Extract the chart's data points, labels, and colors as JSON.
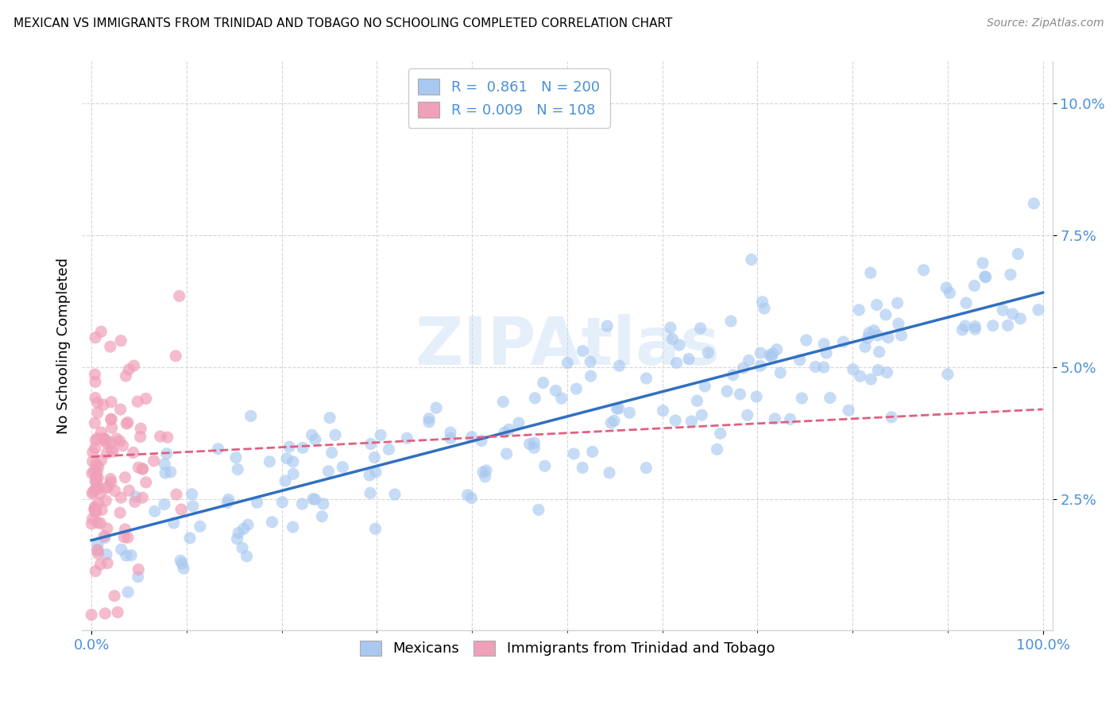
{
  "title": "MEXICAN VS IMMIGRANTS FROM TRINIDAD AND TOBAGO NO SCHOOLING COMPLETED CORRELATION CHART",
  "source": "Source: ZipAtlas.com",
  "ylabel": "No Schooling Completed",
  "blue_R": 0.861,
  "blue_N": 200,
  "pink_R": 0.009,
  "pink_N": 108,
  "blue_color": "#a8c8f0",
  "pink_color": "#f0a0b8",
  "blue_line_color": "#3070c0",
  "pink_line_color": "#e06080",
  "legend_blue_label": "Mexicans",
  "legend_pink_label": "Immigrants from Trinidad and Tobago",
  "background_color": "#ffffff",
  "grid_color": "#cccccc",
  "watermark": "ZIPAtlas",
  "yticks": [
    0.025,
    0.05,
    0.075,
    0.1
  ],
  "ytick_labels": [
    "2.5%",
    "5.0%",
    "7.5%",
    "10.0%"
  ],
  "ylim_min": 0.0,
  "ylim_max": 0.108
}
